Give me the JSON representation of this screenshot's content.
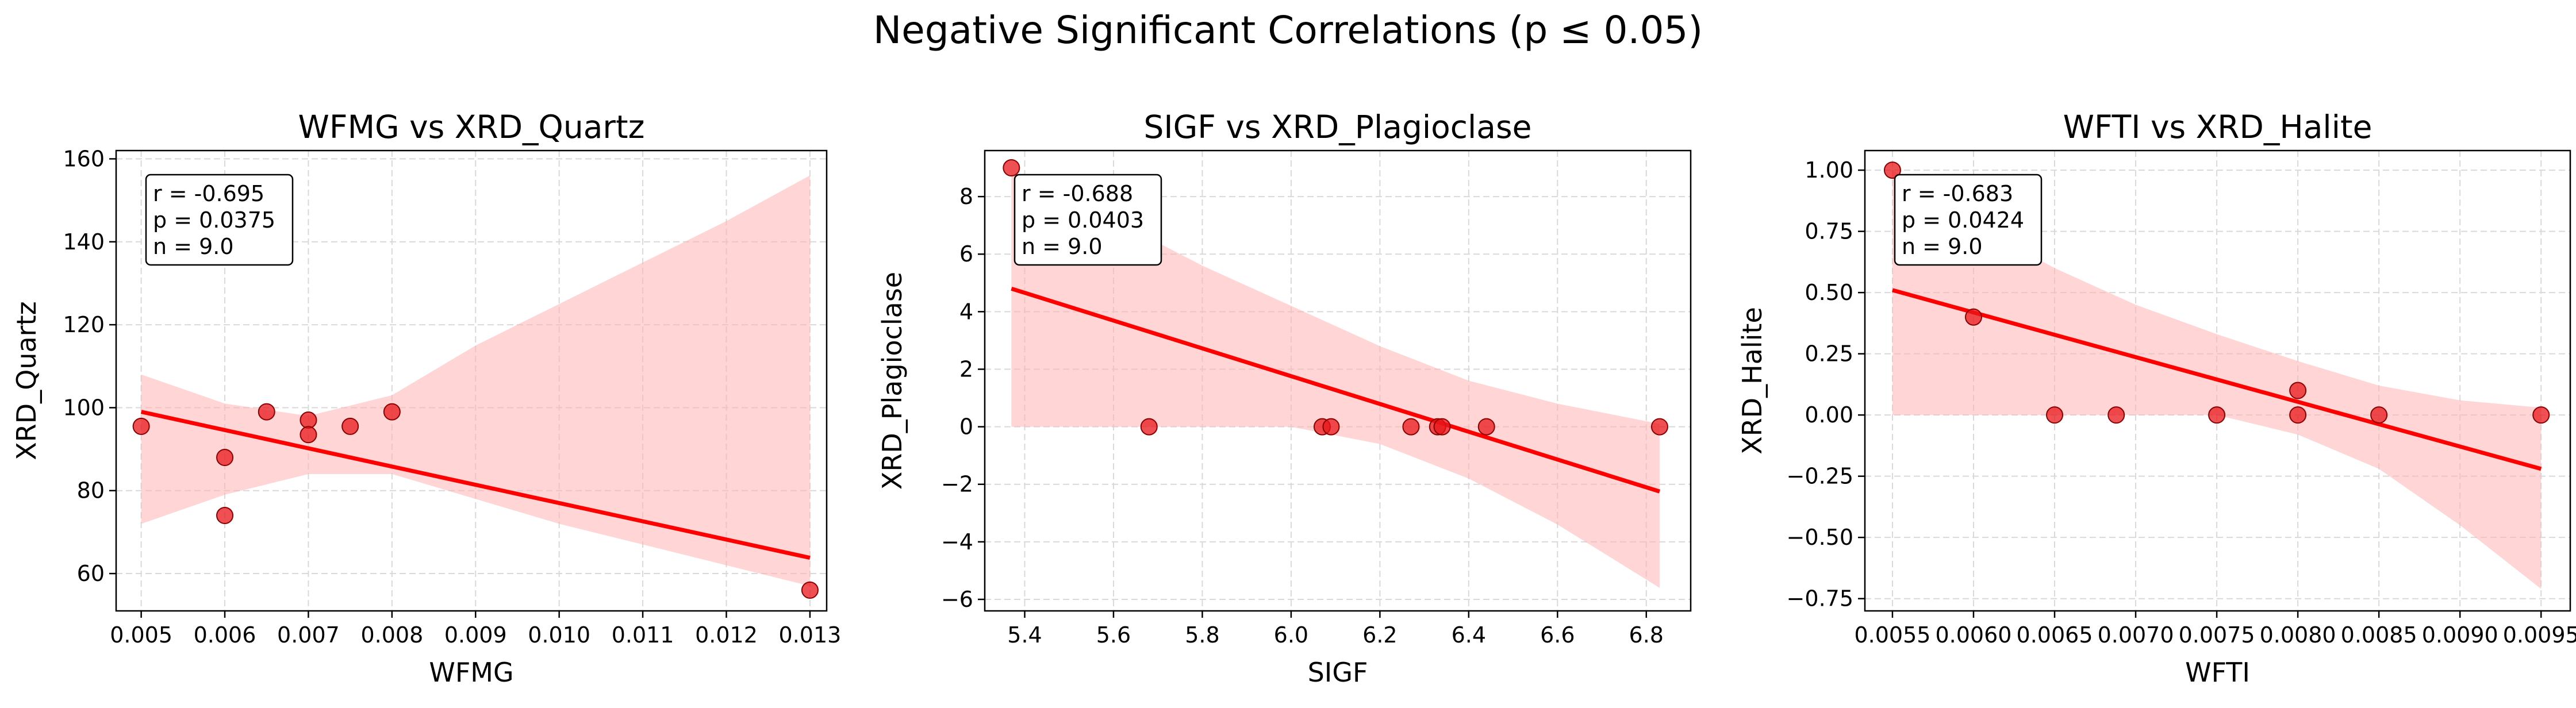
{
  "figure": {
    "title": "Negative Significant Correlations (p ≤ 0.05)"
  },
  "chart_data": [
    {
      "type": "scatter",
      "title": "WFMG vs XRD_Quartz",
      "xlabel": "WFMG",
      "ylabel": "XRD_Quartz",
      "xlim": [
        0.0047,
        0.0132
      ],
      "ylim": [
        51,
        162
      ],
      "xticks": [
        0.005,
        0.006,
        0.007,
        0.008,
        0.009,
        0.01,
        0.011,
        0.012,
        0.013
      ],
      "xtick_labels": [
        "0.005",
        "0.006",
        "0.007",
        "0.008",
        "0.009",
        "0.010",
        "0.011",
        "0.012",
        "0.013"
      ],
      "yticks": [
        60,
        80,
        100,
        120,
        140,
        160
      ],
      "ytick_labels": [
        "60",
        "80",
        "100",
        "120",
        "140",
        "160"
      ],
      "points": [
        {
          "x": 0.005,
          "y": 95.5
        },
        {
          "x": 0.006,
          "y": 88.0
        },
        {
          "x": 0.006,
          "y": 74.0
        },
        {
          "x": 0.0065,
          "y": 99.0
        },
        {
          "x": 0.007,
          "y": 97.0
        },
        {
          "x": 0.007,
          "y": 93.5
        },
        {
          "x": 0.0075,
          "y": 95.5
        },
        {
          "x": 0.008,
          "y": 99.0
        },
        {
          "x": 0.013,
          "y": 56.0
        }
      ],
      "regression": {
        "x": [
          0.005,
          0.013
        ],
        "y": [
          99.0,
          63.8
        ]
      },
      "ci_band": {
        "x": [
          0.005,
          0.006,
          0.007,
          0.008,
          0.009,
          0.01,
          0.011,
          0.012,
          0.013
        ],
        "upper": [
          108,
          101,
          98,
          103,
          115,
          125,
          135,
          145,
          156
        ],
        "lower": [
          72,
          79,
          84,
          84,
          78,
          72,
          67,
          62,
          57
        ]
      },
      "annotation": [
        "r = -0.695",
        "p = 0.0375",
        "n = 9.0"
      ],
      "grid": true
    },
    {
      "type": "scatter",
      "title": "SIGF vs XRD_Plagioclase",
      "xlabel": "SIGF",
      "ylabel": "XRD_Plagioclase",
      "xlim": [
        5.31,
        6.9
      ],
      "ylim": [
        -6.4,
        9.6
      ],
      "xticks": [
        5.4,
        5.6,
        5.8,
        6.0,
        6.2,
        6.4,
        6.6,
        6.8
      ],
      "xtick_labels": [
        "5.4",
        "5.6",
        "5.8",
        "6.0",
        "6.2",
        "6.4",
        "6.6",
        "6.8"
      ],
      "yticks": [
        -6,
        -4,
        -2,
        0,
        2,
        4,
        6,
        8
      ],
      "ytick_labels": [
        "−6",
        "−4",
        "−2",
        "0",
        "2",
        "4",
        "6",
        "8"
      ],
      "points": [
        {
          "x": 5.37,
          "y": 9.0
        },
        {
          "x": 5.68,
          "y": 0
        },
        {
          "x": 6.07,
          "y": 0
        },
        {
          "x": 6.09,
          "y": 0
        },
        {
          "x": 6.27,
          "y": 0
        },
        {
          "x": 6.33,
          "y": 0
        },
        {
          "x": 6.34,
          "y": 0
        },
        {
          "x": 6.44,
          "y": 0
        },
        {
          "x": 6.83,
          "y": 0
        }
      ],
      "regression": {
        "x": [
          5.37,
          6.83
        ],
        "y": [
          4.8,
          -2.25
        ]
      },
      "ci_band": {
        "x": [
          5.37,
          5.6,
          5.8,
          6.0,
          6.2,
          6.4,
          6.6,
          6.83
        ],
        "upper": [
          8.8,
          7.2,
          5.6,
          4.2,
          2.8,
          1.6,
          0.8,
          0.1
        ],
        "lower": [
          0.0,
          0.0,
          0.0,
          0.0,
          -0.6,
          -1.8,
          -3.4,
          -5.6
        ]
      },
      "annotation": [
        "r = -0.688",
        "p = 0.0403",
        "n = 9.0"
      ],
      "grid": true
    },
    {
      "type": "scatter",
      "title": "WFTI vs XRD_Halite",
      "xlabel": "WFTI",
      "ylabel": "XRD_Halite",
      "xlim": [
        0.00533,
        0.00968
      ],
      "ylim": [
        -0.8,
        1.08
      ],
      "xticks": [
        0.0055,
        0.006,
        0.0065,
        0.007,
        0.0075,
        0.008,
        0.0085,
        0.009,
        0.0095
      ],
      "xtick_labels": [
        "0.0055",
        "0.0060",
        "0.0065",
        "0.0070",
        "0.0075",
        "0.0080",
        "0.0085",
        "0.0090",
        "0.0095"
      ],
      "yticks": [
        -0.75,
        -0.5,
        -0.25,
        0,
        0.25,
        0.5,
        0.75,
        1.0
      ],
      "ytick_labels": [
        "−0.75",
        "−0.50",
        "−0.25",
        "0.00",
        "0.25",
        "0.50",
        "0.75",
        "1.00"
      ],
      "points": [
        {
          "x": 0.0055,
          "y": 1.0
        },
        {
          "x": 0.006,
          "y": 0.4
        },
        {
          "x": 0.0065,
          "y": 0
        },
        {
          "x": 0.00688,
          "y": 0
        },
        {
          "x": 0.0075,
          "y": 0
        },
        {
          "x": 0.008,
          "y": 0.1
        },
        {
          "x": 0.008,
          "y": 0
        },
        {
          "x": 0.0085,
          "y": 0
        },
        {
          "x": 0.0095,
          "y": 0
        }
      ],
      "regression": {
        "x": [
          0.0055,
          0.0095
        ],
        "y": [
          0.51,
          -0.22
        ]
      },
      "ci_band": {
        "x": [
          0.0055,
          0.006,
          0.0065,
          0.007,
          0.0075,
          0.008,
          0.0085,
          0.009,
          0.0095
        ],
        "upper": [
          1.0,
          0.78,
          0.6,
          0.45,
          0.33,
          0.22,
          0.12,
          0.06,
          0.03
        ],
        "lower": [
          0.0,
          0.0,
          0.0,
          0.0,
          0.0,
          -0.08,
          -0.22,
          -0.45,
          -0.71
        ]
      },
      "annotation": [
        "r = -0.683",
        "p = 0.0424",
        "n = 9.0"
      ],
      "grid": true
    }
  ]
}
